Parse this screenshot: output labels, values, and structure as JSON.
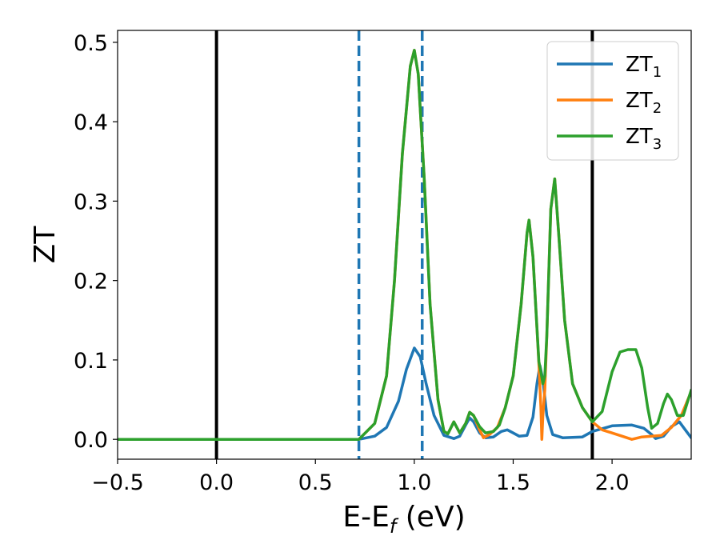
{
  "chart_data": {
    "type": "line",
    "xlabel": {
      "main": "E-E",
      "sub": "f",
      "unit": " (eV)"
    },
    "ylabel": "ZT",
    "xlim": [
      -0.5,
      2.4
    ],
    "ylim": [
      -0.025,
      0.515
    ],
    "xticks": [
      -0.5,
      0.0,
      0.5,
      1.0,
      1.5,
      2.0
    ],
    "xtick_labels": [
      "−0.5",
      "0.0",
      "0.5",
      "1.0",
      "1.5",
      "2.0"
    ],
    "yticks": [
      0.0,
      0.1,
      0.2,
      0.3,
      0.4,
      0.5
    ],
    "ytick_labels": [
      "0.0",
      "0.1",
      "0.2",
      "0.3",
      "0.4",
      "0.5"
    ],
    "grid": false,
    "legend_position": "top-right",
    "vertical_lines": [
      {
        "x": 0.0,
        "style": "solid",
        "color": "#000000"
      },
      {
        "x": 1.9,
        "style": "solid",
        "color": "#000000"
      },
      {
        "x": 0.72,
        "style": "dashed",
        "color": "#1f77b4"
      },
      {
        "x": 1.04,
        "style": "dashed",
        "color": "#1f77b4"
      }
    ],
    "series": [
      {
        "name": "ZT",
        "sub": "1",
        "color": "#1f77b4",
        "points": [
          [
            -0.5,
            0
          ],
          [
            0.72,
            0
          ],
          [
            0.8,
            0.004
          ],
          [
            0.86,
            0.015
          ],
          [
            0.92,
            0.048
          ],
          [
            0.96,
            0.088
          ],
          [
            1.0,
            0.115
          ],
          [
            1.03,
            0.104
          ],
          [
            1.06,
            0.07
          ],
          [
            1.1,
            0.03
          ],
          [
            1.15,
            0.005
          ],
          [
            1.2,
            0.001
          ],
          [
            1.23,
            0.004
          ],
          [
            1.26,
            0.018
          ],
          [
            1.28,
            0.027
          ],
          [
            1.3,
            0.022
          ],
          [
            1.33,
            0.008
          ],
          [
            1.36,
            0.002
          ],
          [
            1.4,
            0.003
          ],
          [
            1.44,
            0.01
          ],
          [
            1.47,
            0.012
          ],
          [
            1.5,
            0.008
          ],
          [
            1.53,
            0.004
          ],
          [
            1.57,
            0.005
          ],
          [
            1.6,
            0.028
          ],
          [
            1.62,
            0.07
          ],
          [
            1.635,
            0.093
          ],
          [
            1.65,
            0.075
          ],
          [
            1.67,
            0.03
          ],
          [
            1.7,
            0.006
          ],
          [
            1.75,
            0.002
          ],
          [
            1.85,
            0.003
          ],
          [
            1.9,
            0.01
          ],
          [
            2.0,
            0.017
          ],
          [
            2.1,
            0.018
          ],
          [
            2.16,
            0.014
          ],
          [
            2.2,
            0.006
          ],
          [
            2.22,
            0.001
          ],
          [
            2.26,
            0.004
          ],
          [
            2.3,
            0.016
          ],
          [
            2.34,
            0.022
          ],
          [
            2.37,
            0.012
          ],
          [
            2.4,
            0.002
          ]
        ]
      },
      {
        "name": "ZT",
        "sub": "2",
        "color": "#ff7f0e",
        "points": [
          [
            -0.5,
            0
          ],
          [
            0.72,
            0
          ],
          [
            0.8,
            0.02
          ],
          [
            0.86,
            0.08
          ],
          [
            0.9,
            0.2
          ],
          [
            0.94,
            0.36
          ],
          [
            0.98,
            0.47
          ],
          [
            1.0,
            0.49
          ],
          [
            1.02,
            0.46
          ],
          [
            1.05,
            0.33
          ],
          [
            1.08,
            0.17
          ],
          [
            1.12,
            0.05
          ],
          [
            1.15,
            0.01
          ],
          [
            1.17,
            0.007
          ],
          [
            1.2,
            0.022
          ],
          [
            1.23,
            0.008
          ],
          [
            1.26,
            0.02
          ],
          [
            1.28,
            0.034
          ],
          [
            1.3,
            0.03
          ],
          [
            1.33,
            0.012
          ],
          [
            1.35,
            0.002
          ],
          [
            1.38,
            0.006
          ],
          [
            1.42,
            0.015
          ],
          [
            1.46,
            0.04
          ],
          [
            1.5,
            0.08
          ],
          [
            1.54,
            0.17
          ],
          [
            1.57,
            0.26
          ],
          [
            1.58,
            0.276
          ],
          [
            1.6,
            0.23
          ],
          [
            1.62,
            0.14
          ],
          [
            1.63,
            0.095
          ],
          [
            1.64,
            0.04
          ],
          [
            1.645,
            0.0
          ],
          [
            1.65,
            0.03
          ],
          [
            1.66,
            0.062
          ],
          [
            1.67,
            0.13
          ],
          [
            1.69,
            0.29
          ],
          [
            1.71,
            0.328
          ],
          [
            1.73,
            0.26
          ],
          [
            1.76,
            0.15
          ],
          [
            1.8,
            0.07
          ],
          [
            1.85,
            0.04
          ],
          [
            1.9,
            0.022
          ],
          [
            1.95,
            0.012
          ],
          [
            2.0,
            0.008
          ],
          [
            2.05,
            0.004
          ],
          [
            2.1,
            0.0
          ],
          [
            2.15,
            0.003
          ],
          [
            2.2,
            0.004
          ],
          [
            2.25,
            0.005
          ],
          [
            2.3,
            0.015
          ],
          [
            2.35,
            0.03
          ],
          [
            2.4,
            0.06
          ]
        ]
      },
      {
        "name": "ZT",
        "sub": "3",
        "color": "#2ca02c",
        "points": [
          [
            -0.5,
            0
          ],
          [
            0.72,
            0
          ],
          [
            0.8,
            0.02
          ],
          [
            0.86,
            0.08
          ],
          [
            0.9,
            0.2
          ],
          [
            0.94,
            0.36
          ],
          [
            0.98,
            0.47
          ],
          [
            1.0,
            0.49
          ],
          [
            1.02,
            0.46
          ],
          [
            1.05,
            0.33
          ],
          [
            1.08,
            0.17
          ],
          [
            1.12,
            0.05
          ],
          [
            1.15,
            0.01
          ],
          [
            1.17,
            0.007
          ],
          [
            1.2,
            0.022
          ],
          [
            1.23,
            0.008
          ],
          [
            1.26,
            0.02
          ],
          [
            1.28,
            0.034
          ],
          [
            1.3,
            0.03
          ],
          [
            1.33,
            0.016
          ],
          [
            1.36,
            0.008
          ],
          [
            1.4,
            0.01
          ],
          [
            1.43,
            0.018
          ],
          [
            1.46,
            0.04
          ],
          [
            1.5,
            0.08
          ],
          [
            1.54,
            0.17
          ],
          [
            1.57,
            0.26
          ],
          [
            1.58,
            0.276
          ],
          [
            1.6,
            0.23
          ],
          [
            1.62,
            0.14
          ],
          [
            1.63,
            0.098
          ],
          [
            1.64,
            0.085
          ],
          [
            1.65,
            0.07
          ],
          [
            1.66,
            0.08
          ],
          [
            1.67,
            0.13
          ],
          [
            1.69,
            0.29
          ],
          [
            1.71,
            0.328
          ],
          [
            1.73,
            0.26
          ],
          [
            1.76,
            0.15
          ],
          [
            1.8,
            0.07
          ],
          [
            1.85,
            0.04
          ],
          [
            1.9,
            0.022
          ],
          [
            1.95,
            0.035
          ],
          [
            2.0,
            0.085
          ],
          [
            2.04,
            0.11
          ],
          [
            2.08,
            0.113
          ],
          [
            2.12,
            0.113
          ],
          [
            2.15,
            0.09
          ],
          [
            2.18,
            0.04
          ],
          [
            2.2,
            0.014
          ],
          [
            2.23,
            0.02
          ],
          [
            2.26,
            0.045
          ],
          [
            2.28,
            0.057
          ],
          [
            2.3,
            0.05
          ],
          [
            2.33,
            0.03
          ],
          [
            2.36,
            0.03
          ],
          [
            2.4,
            0.062
          ]
        ]
      }
    ]
  }
}
